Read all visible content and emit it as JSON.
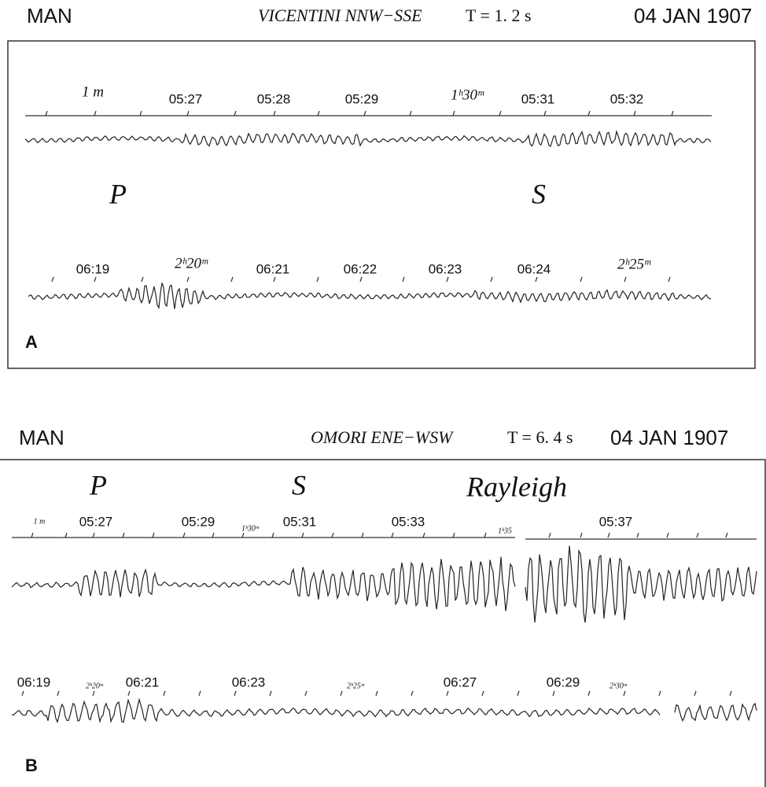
{
  "panels": [
    {
      "label": "A",
      "station": "MAN",
      "instrument": "VICENTINI   NNW−SSE",
      "period": "T = 1. 2 s",
      "date": "04 JAN 1907",
      "phases": [
        "P",
        "S"
      ],
      "traces": [
        [
          "1 m",
          "05:27",
          "05:28",
          "05:29",
          "1ʰ30ᵐ",
          "05:31",
          "05:32"
        ],
        [
          "06:19",
          "2ʰ20ᵐ",
          "06:21",
          "06:22",
          "06:23",
          "06:24",
          "2ʰ25ᵐ"
        ]
      ]
    },
    {
      "label": "B",
      "station": "MAN",
      "instrument": "OMORI   ENE−WSW",
      "period": "T = 6. 4 s",
      "date": "04 JAN 1907",
      "phases": [
        "P",
        "S",
        "Rayleigh"
      ],
      "traces": [
        [
          "1 m",
          "05:27",
          "05:29",
          "1ʰ30ᵐ",
          "05:31",
          "05:33",
          "1ʰ35",
          "05:37"
        ],
        [
          "06:19",
          "2ʰ20ᵐ",
          "06:21",
          "06:23",
          "2ʰ25ᵐ",
          "06:27",
          "06:29",
          "2ʰ30ᵐ"
        ]
      ]
    }
  ]
}
